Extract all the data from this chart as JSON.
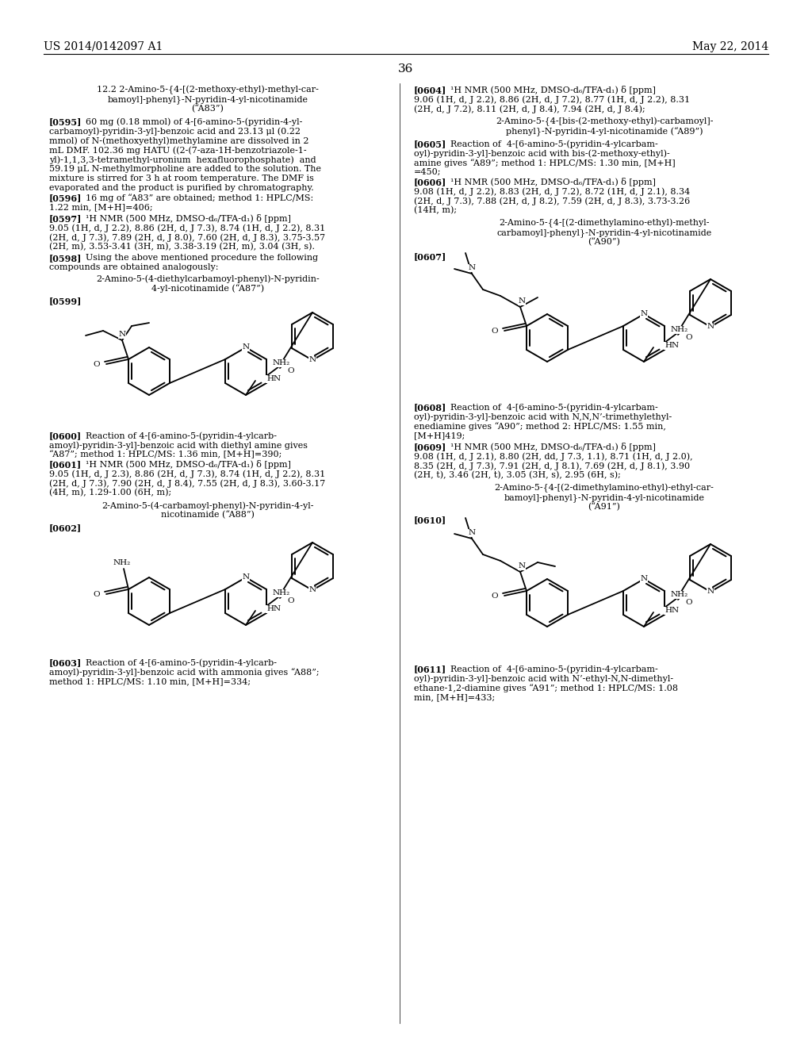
{
  "background_color": "#ffffff",
  "header_left": "US 2014/0142097 A1",
  "header_right": "May 22, 2014",
  "page_number": "36"
}
